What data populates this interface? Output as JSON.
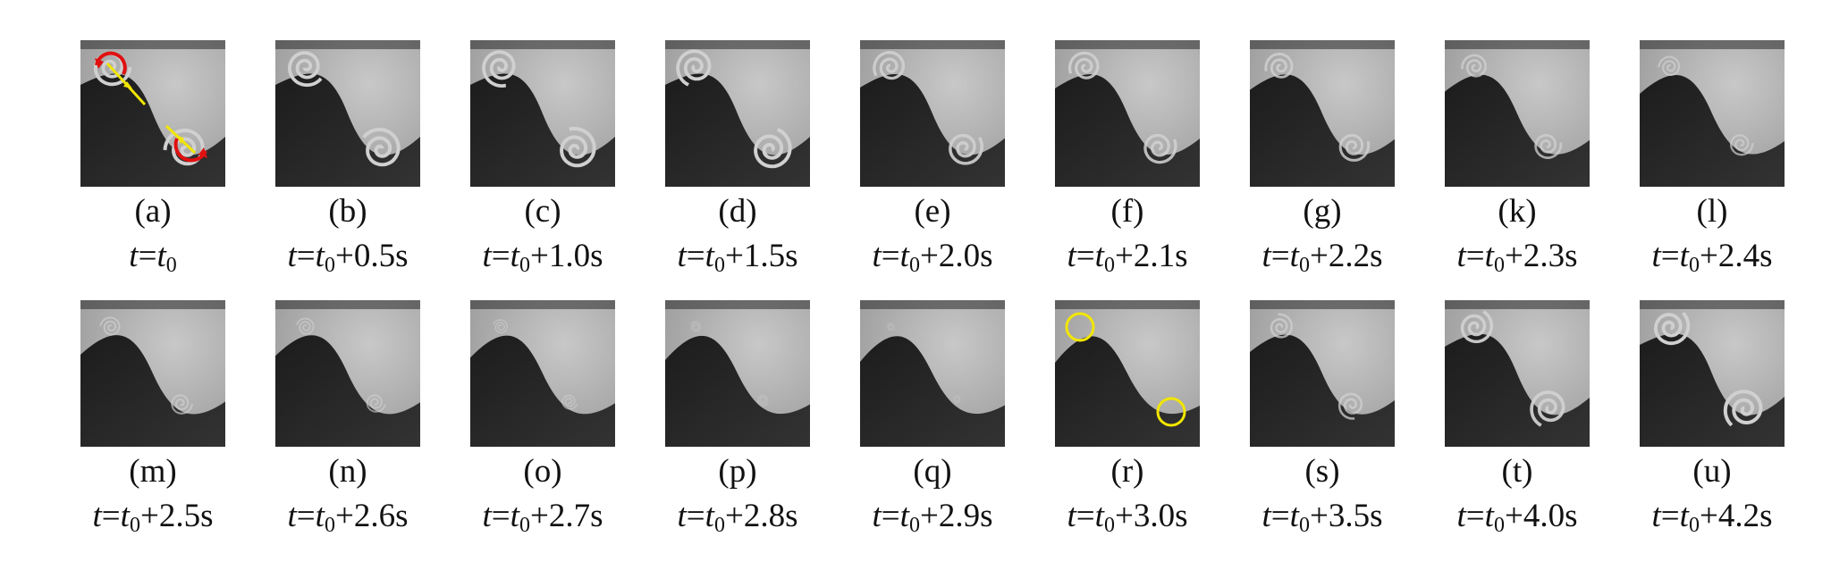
{
  "figure": {
    "panels": [
      {
        "label": "(a)",
        "time_prefix": "t",
        "time_suffix": "",
        "annotation": "arrows",
        "vortex": 1.0,
        "rotate": 0
      },
      {
        "label": "(b)",
        "time_prefix": "t",
        "time_suffix": "+0.5s",
        "annotation": "",
        "vortex": 1.0,
        "rotate": 0.5
      },
      {
        "label": "(c)",
        "time_prefix": "t",
        "time_suffix": "+1.0s",
        "annotation": "",
        "vortex": 1.0,
        "rotate": 1.0
      },
      {
        "label": "(d)",
        "time_prefix": "t",
        "time_suffix": "+1.5s",
        "annotation": "",
        "vortex": 1.0,
        "rotate": 1.5
      },
      {
        "label": "(e)",
        "time_prefix": "t",
        "time_suffix": "+2.0s",
        "annotation": "",
        "vortex": 0.85,
        "rotate": 2.0
      },
      {
        "label": "(f)",
        "time_prefix": "t",
        "time_suffix": "+2.1s",
        "annotation": "",
        "vortex": 0.8,
        "rotate": 2.1
      },
      {
        "label": "(g)",
        "time_prefix": "t",
        "time_suffix": "+2.2s",
        "annotation": "",
        "vortex": 0.72,
        "rotate": 2.2
      },
      {
        "label": "(k)",
        "time_prefix": "t",
        "time_suffix": "+2.3s",
        "annotation": "",
        "vortex": 0.62,
        "rotate": 2.3
      },
      {
        "label": "(l)",
        "time_prefix": "t",
        "time_suffix": "+2.4s",
        "annotation": "",
        "vortex": 0.5,
        "rotate": 2.4
      },
      {
        "label": "(m)",
        "time_prefix": "t",
        "time_suffix": "+2.5s",
        "annotation": "",
        "vortex": 0.45,
        "rotate": 2.5
      },
      {
        "label": "(n)",
        "time_prefix": "t",
        "time_suffix": "+2.6s",
        "annotation": "",
        "vortex": 0.38,
        "rotate": 2.6
      },
      {
        "label": "(o)",
        "time_prefix": "t",
        "time_suffix": "+2.7s",
        "annotation": "",
        "vortex": 0.28,
        "rotate": 2.7
      },
      {
        "label": "(p)",
        "time_prefix": "t",
        "time_suffix": "+2.8s",
        "annotation": "",
        "vortex": 0.15,
        "rotate": 2.8
      },
      {
        "label": "(q)",
        "time_prefix": "t",
        "time_suffix": "+2.9s",
        "annotation": "",
        "vortex": 0.05,
        "rotate": 2.9
      },
      {
        "label": "(r)",
        "time_prefix": "t",
        "time_suffix": "+3.0s",
        "annotation": "circles",
        "vortex": 0.0,
        "rotate": 3.0
      },
      {
        "label": "(s)",
        "time_prefix": "t",
        "time_suffix": "+3.5s",
        "annotation": "",
        "vortex": 0.6,
        "rotate": 3.5
      },
      {
        "label": "(t)",
        "time_prefix": "t",
        "time_suffix": "+4.0s",
        "annotation": "",
        "vortex": 0.9,
        "rotate": 4.0
      },
      {
        "label": "(u)",
        "time_prefix": "t",
        "time_suffix": "+4.2s",
        "annotation": "",
        "vortex": 1.0,
        "rotate": 4.2
      }
    ],
    "subscript": "0",
    "colors": {
      "light_fluid": "#b9b9b9",
      "dark_fluid": "#2a2a2a",
      "arrow_yellow": "#f2e600",
      "arrow_red": "#e01010",
      "circle_yellow": "#f2e600"
    }
  }
}
